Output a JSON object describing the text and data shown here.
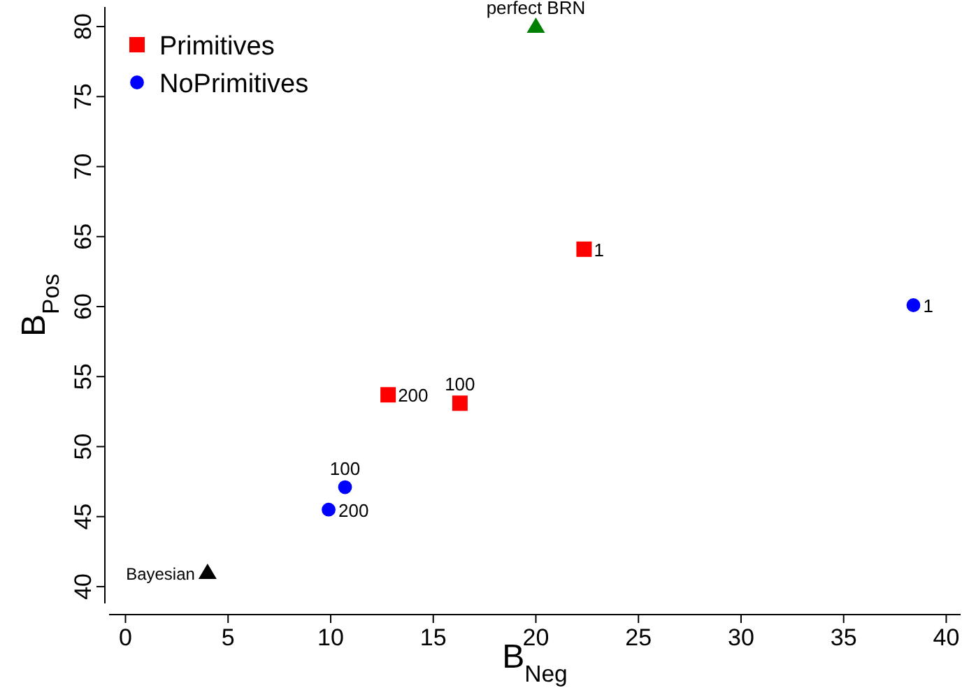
{
  "chart_data": {
    "type": "scatter",
    "xlabel": "B$_{Neg}$",
    "ylabel": "B$_{Pos}$",
    "xlim": [
      -0.8,
      40.7
    ],
    "ylim": [
      38.8,
      81.4
    ],
    "xticks": [
      0,
      5,
      10,
      15,
      20,
      25,
      30,
      35,
      40
    ],
    "yticks": [
      40,
      45,
      50,
      55,
      60,
      65,
      70,
      75,
      80
    ],
    "grid": false,
    "legend": "top left",
    "series": [
      {
        "name": "Primitives",
        "color": "#ff0000",
        "marker": "square",
        "x": [
          22.35,
          16.3,
          12.8
        ],
        "values": [
          64.1,
          53.1,
          53.7
        ]
      },
      {
        "name": "NoPrimitives",
        "color": "#0000ff",
        "marker": "circle",
        "x": [
          38.4,
          10.7,
          9.9
        ],
        "values": [
          60.1,
          47.1,
          45.5
        ]
      },
      {
        "color": "#008000",
        "marker": "triangle",
        "x": [
          20
        ],
        "values": [
          80
        ]
      },
      {
        "color": "#000000",
        "marker": "triangle",
        "x": [
          4
        ],
        "values": [
          41
        ]
      }
    ],
    "annotations": [
      {
        "text": "1",
        "x": 22.35,
        "y": 64.1
      },
      {
        "text": "100",
        "x": 16.3,
        "y": 53.1
      },
      {
        "text": "200",
        "x": 12.8,
        "y": 53.7
      },
      {
        "text": "1",
        "x": 38.4,
        "y": 60.1
      },
      {
        "text": "100",
        "x": 10.7,
        "y": 47.1
      },
      {
        "text": "200",
        "x": 9.9,
        "y": 45.5
      },
      {
        "text": "perfect BRN",
        "x": 20,
        "y": 80
      },
      {
        "text": "Bayesian",
        "x": 4,
        "y": 41
      }
    ]
  }
}
